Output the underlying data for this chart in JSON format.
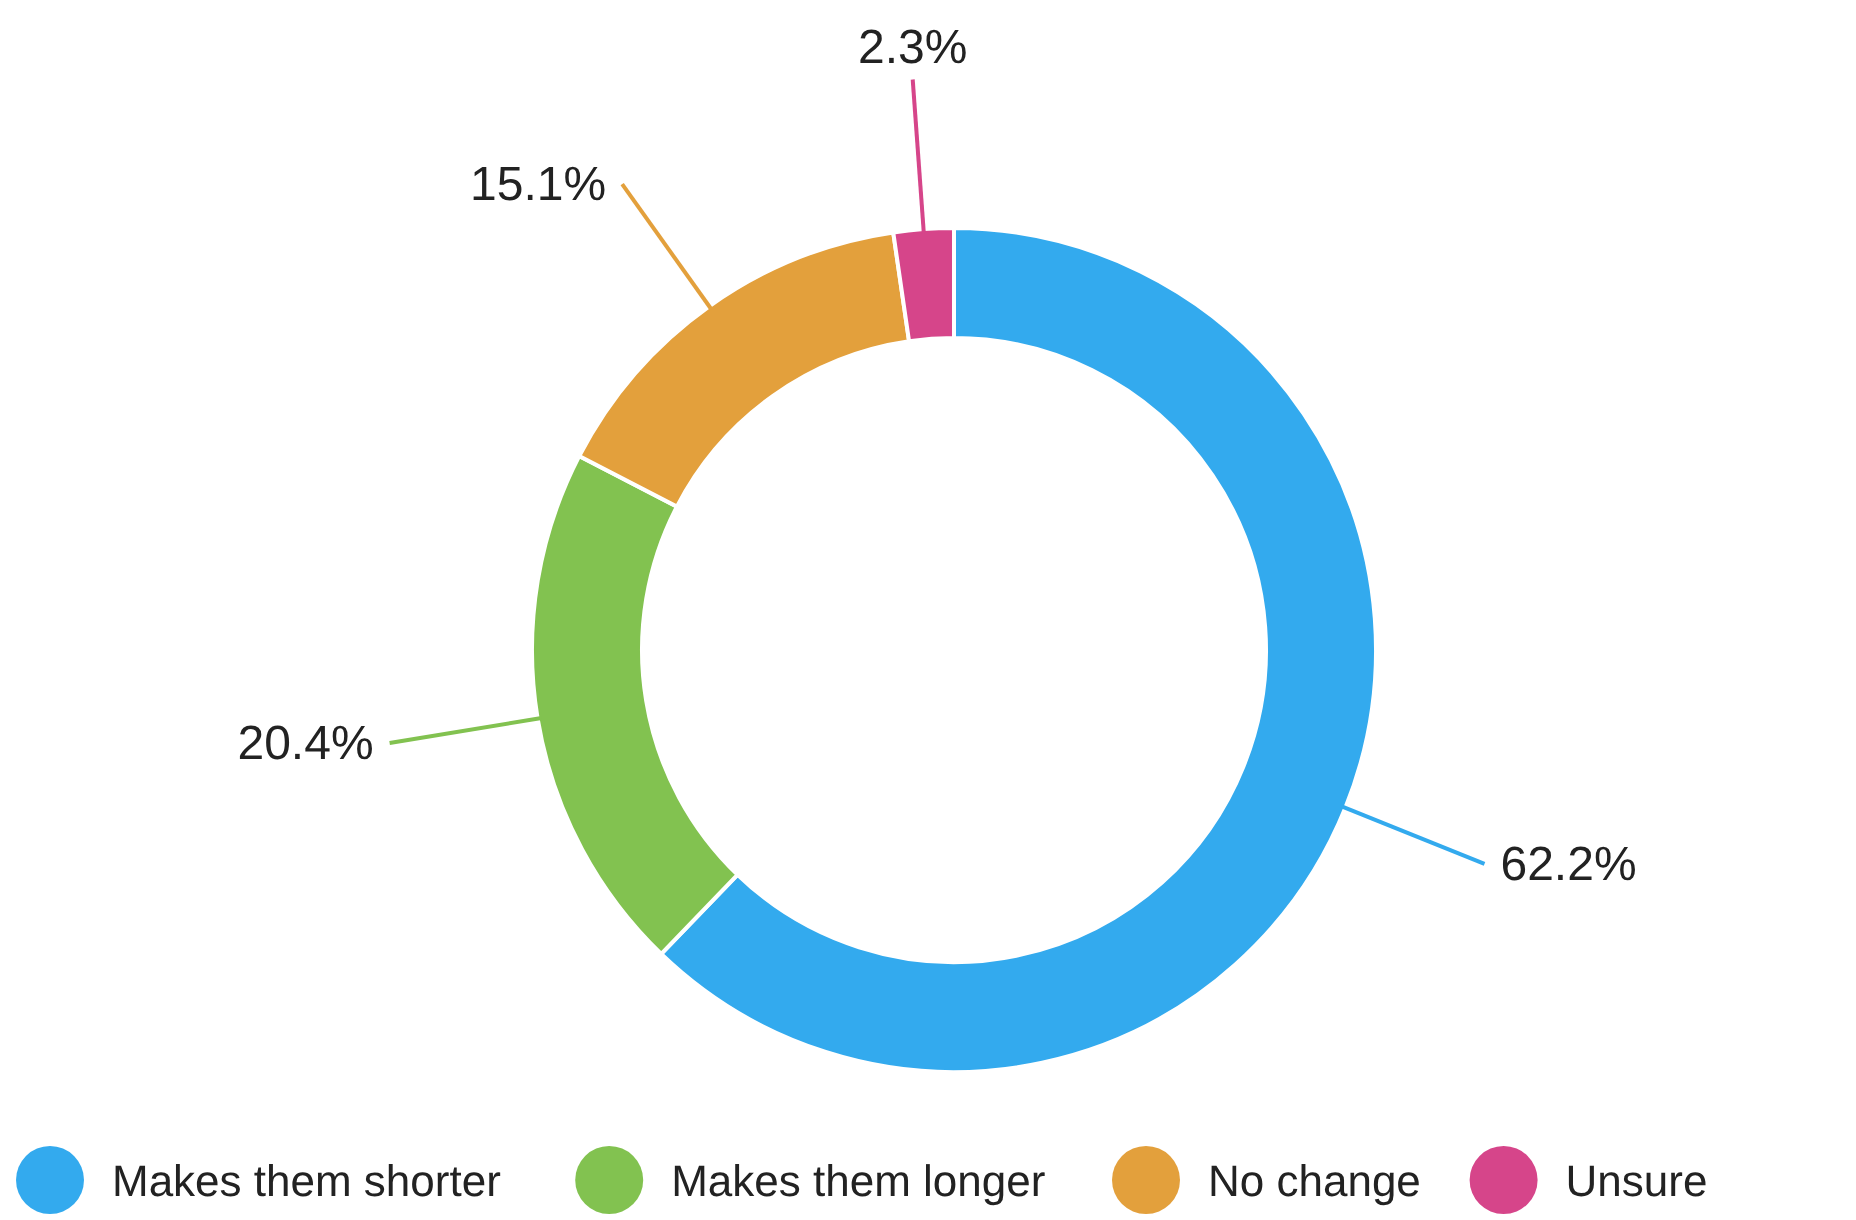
{
  "chart_data": {
    "type": "donut",
    "categories": [
      "Makes them shorter",
      "Makes them longer",
      "No change",
      "Unsure"
    ],
    "values": [
      62.2,
      20.4,
      15.1,
      2.3
    ],
    "colors": [
      "#33aaee",
      "#82c250",
      "#e3a03c",
      "#d6458a"
    ],
    "value_labels": [
      "62.2%",
      "20.4%",
      "15.1%",
      "2.3%"
    ],
    "legend": "bottom"
  }
}
